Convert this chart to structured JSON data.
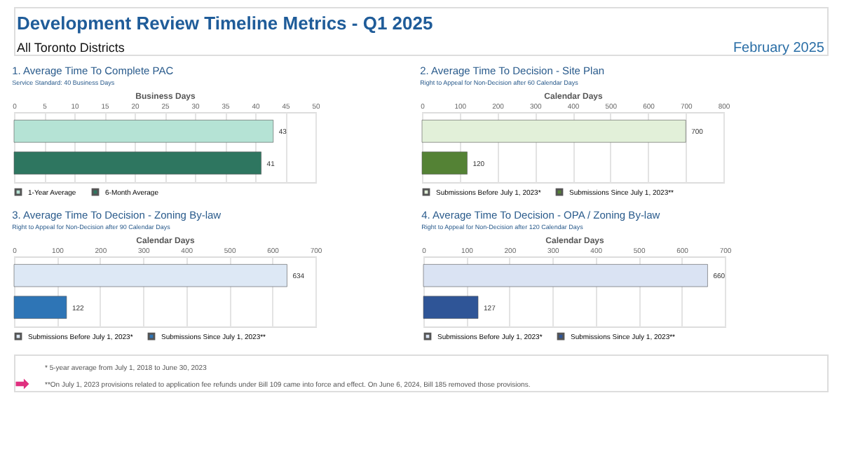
{
  "chart_data": [
    {
      "type": "bar",
      "orientation": "horizontal",
      "title": "1. Average Time To Complete PAC",
      "subtitle": "Service Standard: 40 Business Days",
      "xlabel": "Business Days",
      "categories": [
        null,
        null
      ],
      "xlim": [
        0,
        50
      ],
      "xticks": [
        0,
        5,
        10,
        15,
        20,
        25,
        30,
        35,
        40,
        45,
        50
      ],
      "grid": "x",
      "legend": "bottom",
      "data_labels": true,
      "series": [
        {
          "name": "1-Year Average",
          "color": "#b5e3d5",
          "values": [
            43,
            null
          ]
        },
        {
          "name": "6-Month Average",
          "color": "#2e7660",
          "values": [
            null,
            41
          ]
        }
      ],
      "annotations": [
        "Development Review Timeline Metrics - Q1 2025",
        "All Toronto Districts",
        "February 2025"
      ]
    },
    {
      "type": "bar",
      "orientation": "horizontal",
      "title": "2. Average Time To Decision - Site Plan",
      "subtitle": "Right to Appeal for Non-Decision after 60 Calendar Days",
      "xlabel": "Calendar Days",
      "categories": [
        null,
        null
      ],
      "xlim": [
        0,
        800
      ],
      "xticks": [
        0,
        100,
        200,
        300,
        400,
        500,
        600,
        700,
        800
      ],
      "grid": "x",
      "legend": "bottom",
      "data_labels": true,
      "series": [
        {
          "name": "Submissions Before July 1, 2023*",
          "color": "#e2f0d9",
          "values": [
            700,
            null
          ]
        },
        {
          "name": "Submissions Since July 1, 2023**",
          "color": "#548235",
          "values": [
            null,
            120
          ]
        }
      ]
    },
    {
      "type": "bar",
      "orientation": "horizontal",
      "title": "3. Average Time To Decision - Zoning By-law",
      "subtitle": "Right to Appeal for Non-Decision after 90 Calendar Days",
      "xlabel": "Calendar Days",
      "categories": [
        null,
        null
      ],
      "xlim": [
        0,
        700
      ],
      "xticks": [
        0,
        100,
        200,
        300,
        400,
        500,
        600,
        700
      ],
      "grid": "x",
      "legend": "bottom",
      "data_labels": true,
      "series": [
        {
          "name": "Submissions Before July 1, 2023*",
          "color": "#dde8f5",
          "values": [
            634,
            null
          ]
        },
        {
          "name": "Submissions Since July 1, 2023**",
          "color": "#2e75b6",
          "values": [
            null,
            122
          ]
        }
      ]
    },
    {
      "type": "bar",
      "orientation": "horizontal",
      "title": "4. Average Time To Decision - OPA / Zoning By-law",
      "subtitle": "Right to Appeal for Non-Decision after 120 Calendar Days",
      "xlabel": "Calendar Days",
      "categories": [
        null,
        null
      ],
      "xlim": [
        0,
        700
      ],
      "xticks": [
        0,
        100,
        200,
        300,
        400,
        500,
        600,
        700
      ],
      "grid": "x",
      "legend": "bottom",
      "data_labels": true,
      "series": [
        {
          "name": "Submissions Before July 1, 2023*",
          "color": "#dae3f3",
          "values": [
            660,
            null
          ]
        },
        {
          "name": "Submissions Since July 1, 2023**",
          "color": "#2f5597",
          "values": [
            null,
            127
          ]
        }
      ],
      "annotations": [
        "* 5-year average from July 1, 2018 to June 30, 2023",
        "**On July 1, 2023 provisions related to application fee refunds under Bill 109 came into force and effect. On June 6, 2024, Bill 185 removed those provisions."
      ]
    }
  ]
}
